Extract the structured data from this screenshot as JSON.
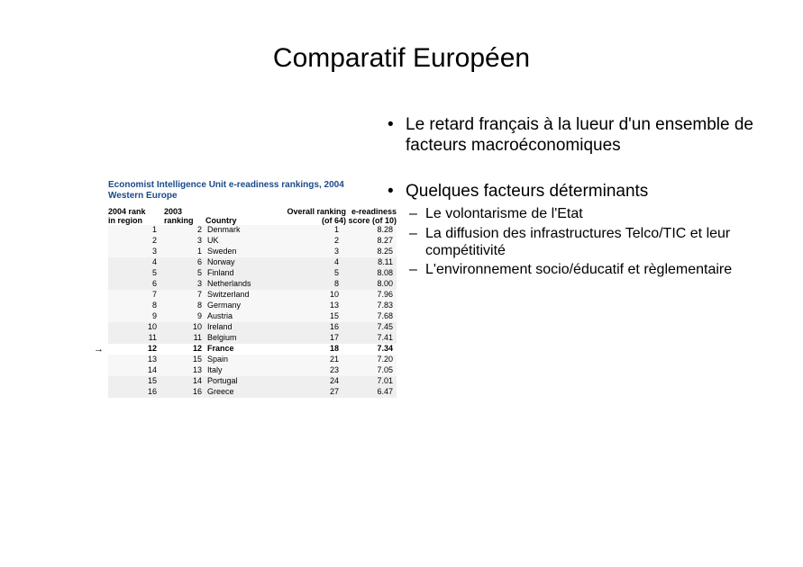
{
  "title": "Comparatif Européen",
  "table": {
    "title_color": "#1a4a8a",
    "title": "Economist Intelligence Unit e-readiness rankings, 2004\nWestern Europe",
    "columns": {
      "col1a": "2004 rank",
      "col1b": "in region",
      "col2a": "2003",
      "col2b": "ranking",
      "col3": "Country",
      "col4a": "Overall ranking",
      "col4b": "(of 64)",
      "col5a": "e-readiness",
      "col5b": "score (of 10)"
    },
    "rows": [
      {
        "rank": "1",
        "prev": "2",
        "country": "Denmark",
        "overall": "1",
        "score": "8.28",
        "band": 0
      },
      {
        "rank": "2",
        "prev": "3",
        "country": "UK",
        "overall": "2",
        "score": "8.27",
        "band": 0
      },
      {
        "rank": "3",
        "prev": "1",
        "country": "Sweden",
        "overall": "3",
        "score": "8.25",
        "band": 0
      },
      {
        "rank": "4",
        "prev": "6",
        "country": "Norway",
        "overall": "4",
        "score": "8.11",
        "band": 1
      },
      {
        "rank": "5",
        "prev": "5",
        "country": "Finland",
        "overall": "5",
        "score": "8.08",
        "band": 1
      },
      {
        "rank": "6",
        "prev": "3",
        "country": "Netherlands",
        "overall": "8",
        "score": "8.00",
        "band": 1
      },
      {
        "rank": "7",
        "prev": "7",
        "country": "Switzerland",
        "overall": "10",
        "score": "7.96",
        "band": 0
      },
      {
        "rank": "8",
        "prev": "8",
        "country": "Germany",
        "overall": "13",
        "score": "7.83",
        "band": 0
      },
      {
        "rank": "9",
        "prev": "9",
        "country": "Austria",
        "overall": "15",
        "score": "7.68",
        "band": 0
      },
      {
        "rank": "10",
        "prev": "10",
        "country": "Ireland",
        "overall": "16",
        "score": "7.45",
        "band": 1
      },
      {
        "rank": "11",
        "prev": "11",
        "country": "Belgium",
        "overall": "17",
        "score": "7.41",
        "band": 1
      },
      {
        "rank": "12",
        "prev": "12",
        "country": "France",
        "overall": "18",
        "score": "7.34",
        "france": true
      },
      {
        "rank": "13",
        "prev": "15",
        "country": "Spain",
        "overall": "21",
        "score": "7.20",
        "band": 0
      },
      {
        "rank": "14",
        "prev": "13",
        "country": "Italy",
        "overall": "23",
        "score": "7.05",
        "band": 0
      },
      {
        "rank": "15",
        "prev": "14",
        "country": "Portugal",
        "overall": "24",
        "score": "7.01",
        "band": 1
      },
      {
        "rank": "16",
        "prev": "16",
        "country": "Greece",
        "overall": "27",
        "score": "6.47",
        "band": 1
      }
    ],
    "arrow": "→"
  },
  "bullets": {
    "b1": "Le retard français à la lueur d'un ensemble de facteurs macroéconomiques",
    "b2": "Quelques facteurs déterminants",
    "sub": [
      "Le volontarisme de l'Etat",
      "La diffusion des infrastructures Telco/TIC et leur compétitivité",
      "L'environnement socio/éducatif et règlementaire"
    ]
  }
}
